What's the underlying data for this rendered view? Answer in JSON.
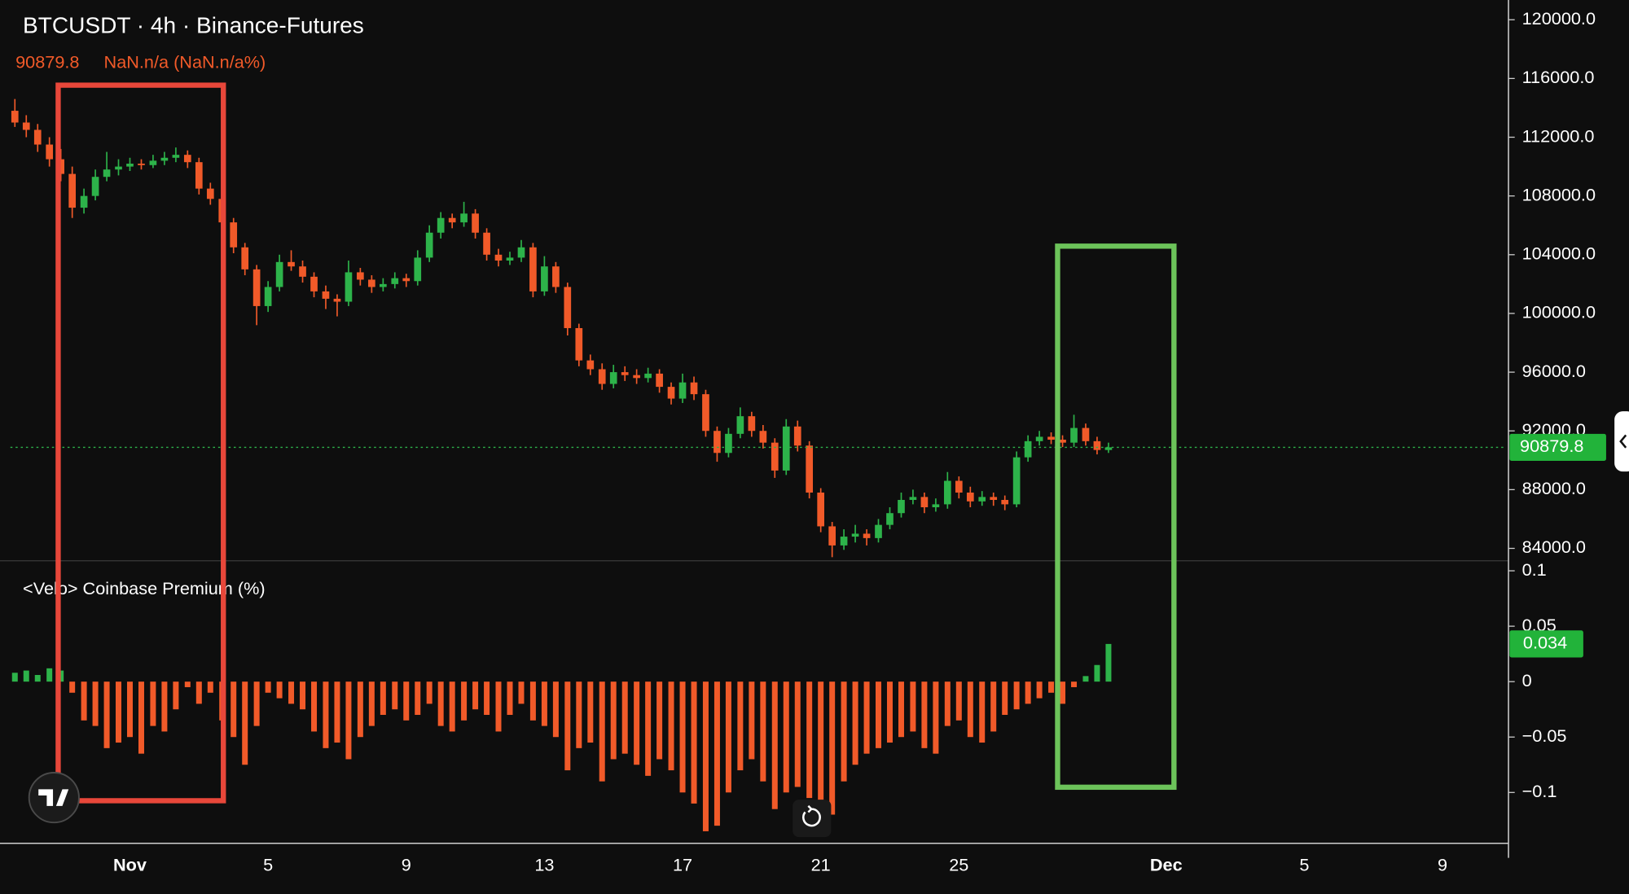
{
  "chart_data": [
    {
      "type": "candlestick",
      "title": "BTCUSDT · 4h · Binance-Futures",
      "change_text": "NaN.n/a (NaN.n/a%)",
      "up_color": "#2db34a",
      "down_color": "#f15a29",
      "xlim": [
        -2.46,
        40.85
      ],
      "xticks": [
        {
          "value": 1,
          "label": "Nov"
        },
        5,
        9,
        13,
        17,
        21,
        25,
        {
          "value": 31,
          "label": "Dec"
        },
        {
          "value": 35,
          "label": "5"
        },
        {
          "value": 39,
          "label": "9"
        }
      ],
      "ylim": [
        83152,
        121343
      ],
      "yticks": [
        {
          "value": 120000,
          "label": "120000.0"
        },
        {
          "value": 116000,
          "label": "116000.0"
        },
        {
          "value": 112000,
          "label": "112000.0"
        },
        {
          "value": 108000,
          "label": "108000.0"
        },
        {
          "value": 104000,
          "label": "104000.0"
        },
        {
          "value": 100000,
          "label": "100000.0"
        },
        {
          "value": 96000,
          "label": "96000.0"
        },
        {
          "value": 92000,
          "label": "92000.0"
        },
        {
          "value": 88000,
          "label": "88000.0"
        },
        {
          "value": 84000,
          "label": "84000.0"
        }
      ],
      "x": [
        -2.33,
        -2.0,
        -1.67,
        -1.33,
        -1.0,
        -0.67,
        -0.33,
        0,
        0.33,
        0.67,
        1,
        1.33,
        1.67,
        2,
        2.33,
        2.67,
        3,
        3.33,
        3.67,
        4,
        4.33,
        4.67,
        5,
        5.33,
        5.67,
        6,
        6.33,
        6.67,
        7,
        7.33,
        7.67,
        8,
        8.33,
        8.67,
        9,
        9.33,
        9.67,
        10,
        10.33,
        10.67,
        11,
        11.33,
        11.67,
        12,
        12.33,
        12.67,
        13,
        13.33,
        13.67,
        14,
        14.33,
        14.67,
        15,
        15.33,
        15.67,
        16,
        16.33,
        16.67,
        17,
        17.33,
        17.67,
        18,
        18.33,
        18.67,
        19,
        19.33,
        19.67,
        20,
        20.33,
        20.67,
        21,
        21.33,
        21.67,
        22,
        22.33,
        22.67,
        23,
        23.33,
        23.67,
        24,
        24.33,
        24.67,
        25,
        25.33,
        25.67,
        26,
        26.33,
        26.67,
        27,
        27.33,
        27.67,
        28,
        28.33,
        28.67,
        29,
        29.33
      ],
      "ohlc": [
        [
          113800,
          114600,
          112700,
          113000
        ],
        [
          113000,
          113500,
          112000,
          112500
        ],
        [
          112500,
          112900,
          111000,
          111500
        ],
        [
          111500,
          112000,
          110000,
          110500
        ],
        [
          110500,
          111200,
          109000,
          109500
        ],
        [
          109500,
          110000,
          106500,
          107200
        ],
        [
          107200,
          108500,
          106800,
          108000
        ],
        [
          108000,
          109800,
          107700,
          109300
        ],
        [
          109300,
          111000,
          109000,
          109800
        ],
        [
          109800,
          110500,
          109400,
          110000
        ],
        [
          110000,
          110600,
          109700,
          110200
        ],
        [
          110200,
          110500,
          109800,
          110100
        ],
        [
          110100,
          110800,
          109900,
          110400
        ],
        [
          110400,
          111000,
          110100,
          110600
        ],
        [
          110600,
          111300,
          110300,
          110800
        ],
        [
          110800,
          111100,
          109900,
          110300
        ],
        [
          110300,
          110600,
          108100,
          108500
        ],
        [
          108500,
          108900,
          107400,
          107800
        ],
        [
          107800,
          108100,
          105800,
          106200
        ],
        [
          106200,
          106500,
          104100,
          104500
        ],
        [
          104500,
          104800,
          102600,
          103000
        ],
        [
          103000,
          103300,
          99200,
          100500
        ],
        [
          100500,
          102200,
          100100,
          101800
        ],
        [
          101800,
          104000,
          101500,
          103500
        ],
        [
          103500,
          104300,
          102900,
          103200
        ],
        [
          103200,
          103600,
          102100,
          102500
        ],
        [
          102500,
          102800,
          101100,
          101500
        ],
        [
          101500,
          101900,
          100300,
          101000
        ],
        [
          101000,
          101300,
          99800,
          100800
        ],
        [
          100800,
          103600,
          100500,
          102800
        ],
        [
          102800,
          103100,
          101900,
          102300
        ],
        [
          102300,
          102600,
          101400,
          101800
        ],
        [
          101800,
          102400,
          101500,
          102000
        ],
        [
          102000,
          102800,
          101700,
          102400
        ],
        [
          102400,
          102700,
          101800,
          102200
        ],
        [
          102200,
          104300,
          101900,
          103800
        ],
        [
          103800,
          106000,
          103500,
          105500
        ],
        [
          105500,
          106900,
          105100,
          106500
        ],
        [
          106500,
          106800,
          105800,
          106200
        ],
        [
          106200,
          107600,
          105900,
          106800
        ],
        [
          106800,
          107100,
          105100,
          105500
        ],
        [
          105500,
          105800,
          103600,
          104000
        ],
        [
          104000,
          104400,
          103200,
          103600
        ],
        [
          103600,
          104200,
          103300,
          103800
        ],
        [
          103800,
          105000,
          103500,
          104500
        ],
        [
          104500,
          104800,
          101100,
          101500
        ],
        [
          101500,
          103900,
          101200,
          103200
        ],
        [
          103200,
          103500,
          101400,
          101800
        ],
        [
          101800,
          102100,
          98500,
          99000
        ],
        [
          99000,
          99300,
          96400,
          96800
        ],
        [
          96800,
          97200,
          95800,
          96200
        ],
        [
          96200,
          96600,
          94800,
          95200
        ],
        [
          95200,
          96500,
          94900,
          96000
        ],
        [
          96000,
          96400,
          95400,
          95800
        ],
        [
          95800,
          96200,
          95200,
          95600
        ],
        [
          95600,
          96300,
          95300,
          95900
        ],
        [
          95900,
          96200,
          94600,
          95000
        ],
        [
          95000,
          95300,
          93800,
          94200
        ],
        [
          94200,
          95900,
          93900,
          95300
        ],
        [
          95300,
          95700,
          94100,
          94500
        ],
        [
          94500,
          94800,
          91600,
          92000
        ],
        [
          92000,
          92300,
          89900,
          90500
        ],
        [
          90500,
          92200,
          90200,
          91800
        ],
        [
          91800,
          93600,
          91500,
          93000
        ],
        [
          93000,
          93300,
          91600,
          92000
        ],
        [
          92000,
          92400,
          90800,
          91200
        ],
        [
          91200,
          91500,
          88800,
          89300
        ],
        [
          89300,
          92800,
          89000,
          92300
        ],
        [
          92300,
          92700,
          90600,
          91000
        ],
        [
          91000,
          91300,
          87400,
          87800
        ],
        [
          87800,
          88100,
          85100,
          85500
        ],
        [
          85500,
          85800,
          83400,
          84200
        ],
        [
          84200,
          85300,
          83900,
          84800
        ],
        [
          84800,
          85600,
          84400,
          85000
        ],
        [
          85000,
          85300,
          84200,
          84700
        ],
        [
          84700,
          86000,
          84400,
          85600
        ],
        [
          85600,
          86800,
          85300,
          86400
        ],
        [
          86400,
          87800,
          86100,
          87300
        ],
        [
          87300,
          88000,
          87000,
          87500
        ],
        [
          87500,
          87800,
          86400,
          86800
        ],
        [
          86800,
          87400,
          86500,
          87000
        ],
        [
          87000,
          89200,
          86700,
          88600
        ],
        [
          88600,
          88900,
          87400,
          87800
        ],
        [
          87800,
          88200,
          86800,
          87200
        ],
        [
          87200,
          87900,
          86900,
          87500
        ],
        [
          87500,
          87800,
          86900,
          87300
        ],
        [
          87300,
          87600,
          86600,
          87000
        ],
        [
          87000,
          90600,
          86800,
          90200
        ],
        [
          90200,
          91700,
          89900,
          91300
        ],
        [
          91300,
          92000,
          91000,
          91600
        ],
        [
          91600,
          91900,
          91100,
          91400
        ],
        [
          91400,
          91700,
          90900,
          91200
        ],
        [
          91200,
          93100,
          90900,
          92200
        ],
        [
          92200,
          92500,
          91000,
          91300
        ],
        [
          91300,
          91600,
          90400,
          90700
        ],
        [
          90700,
          91200,
          90500,
          90879.8
        ]
      ]
    },
    {
      "type": "bar",
      "title": "<Velo> Coinbase Premium (%)",
      "positive_color": "#2db34a",
      "negative_color": "#f15a29",
      "ylim": [
        -0.144,
        0.109
      ],
      "yticks": [
        0.1,
        0.05,
        0,
        {
          "value": -0.05,
          "label": "−0.05"
        },
        {
          "value": -0.1,
          "label": "−0.1"
        }
      ],
      "values": [
        0.008,
        0.01,
        0.006,
        0.012,
        0.01,
        -0.01,
        -0.035,
        -0.04,
        -0.06,
        -0.055,
        -0.05,
        -0.065,
        -0.04,
        -0.045,
        -0.025,
        -0.005,
        -0.02,
        -0.01,
        -0.035,
        -0.05,
        -0.075,
        -0.04,
        -0.01,
        -0.015,
        -0.02,
        -0.025,
        -0.045,
        -0.06,
        -0.055,
        -0.07,
        -0.05,
        -0.04,
        -0.03,
        -0.025,
        -0.035,
        -0.03,
        -0.02,
        -0.04,
        -0.045,
        -0.035,
        -0.025,
        -0.03,
        -0.045,
        -0.03,
        -0.02,
        -0.035,
        -0.04,
        -0.05,
        -0.08,
        -0.06,
        -0.055,
        -0.09,
        -0.07,
        -0.065,
        -0.075,
        -0.085,
        -0.07,
        -0.08,
        -0.1,
        -0.11,
        -0.135,
        -0.13,
        -0.1,
        -0.08,
        -0.07,
        -0.09,
        -0.115,
        -0.1,
        -0.095,
        -0.105,
        -0.13,
        -0.12,
        -0.09,
        -0.075,
        -0.065,
        -0.06,
        -0.055,
        -0.05,
        -0.045,
        -0.06,
        -0.065,
        -0.04,
        -0.035,
        -0.05,
        -0.055,
        -0.045,
        -0.03,
        -0.025,
        -0.02,
        -0.015,
        -0.01,
        -0.02,
        -0.005,
        0.005,
        0.015,
        0.034
      ]
    }
  ]
}
